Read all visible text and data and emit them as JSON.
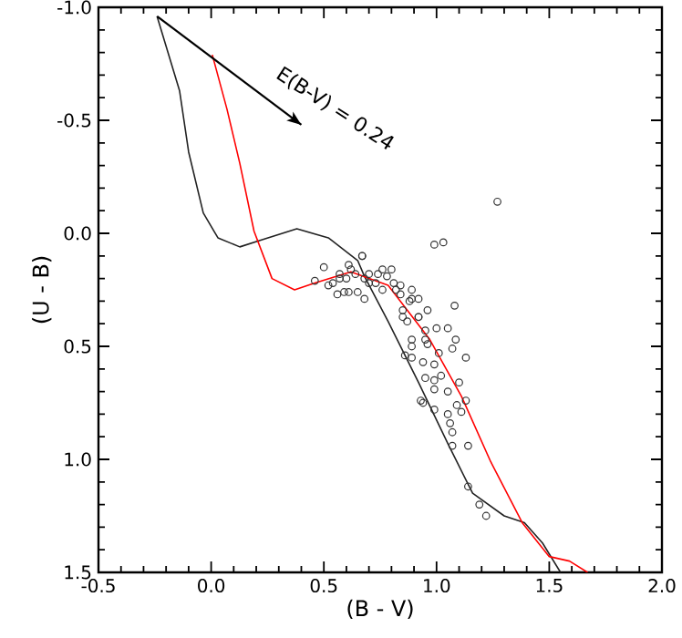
{
  "chart_data": {
    "type": "scatter",
    "xlabel": "(B - V)",
    "ylabel": "(U - B)",
    "xlim": [
      -0.5,
      2.0
    ],
    "ylim": [
      1.5,
      -1.0
    ],
    "xticks": [
      -0.5,
      {
        "value": 0,
        "label": "0.0"
      },
      0.5,
      {
        "value": 1,
        "label": "1.0"
      },
      1.5,
      {
        "value": 2,
        "label": "2.0"
      }
    ],
    "yticks": [
      {
        "value": -1,
        "label": "-1.0"
      },
      -0.5,
      {
        "value": 0,
        "label": "0.0"
      },
      0.5,
      {
        "value": 1,
        "label": "1.0"
      },
      1.5
    ],
    "annotations": [
      "E(B-V) = 0.24"
    ],
    "series": [
      {
        "type": "line",
        "color": "#222222",
        "x": [
          -0.24,
          -0.14,
          -0.1,
          -0.035,
          0.03,
          0.127,
          0.22,
          0.38,
          0.52,
          0.65,
          0.68,
          0.785,
          0.92,
          1.05,
          1.16,
          1.3,
          1.39,
          1.47,
          1.55
        ],
        "values": [
          -0.96,
          -0.63,
          -0.36,
          -0.09,
          0.02,
          0.06,
          0.03,
          -0.02,
          0.02,
          0.12,
          0.19,
          0.39,
          0.66,
          0.93,
          1.15,
          1.25,
          1.28,
          1.37,
          1.5
        ]
      },
      {
        "type": "line",
        "color": "#ff0000",
        "x": [
          0.005,
          0.07,
          0.127,
          0.19,
          0.27,
          0.37,
          0.46,
          0.62,
          0.785,
          0.97,
          1.11,
          1.24,
          1.38,
          1.5,
          1.59,
          1.67
        ],
        "values": [
          -0.79,
          -0.55,
          -0.31,
          -0.01,
          0.2,
          0.25,
          0.22,
          0.17,
          0.23,
          0.47,
          0.72,
          1.01,
          1.28,
          1.43,
          1.45,
          1.5
        ]
      },
      {
        "type": "line",
        "color": "#000000",
        "x": [
          -0.24,
          0.4
        ],
        "values": [
          -0.96,
          -0.48
        ]
      },
      {
        "marker": "circle",
        "color": "#333333",
        "x": [
          1.27,
          0.99,
          1.03,
          0.67,
          1.08,
          1.05,
          1.085,
          1.07,
          1.13,
          1.01,
          0.99,
          0.95,
          0.99,
          1.02,
          1.1,
          1.05,
          0.99,
          1.13,
          1.09,
          1.11,
          1.05,
          0.99,
          0.94,
          1.06,
          1.07,
          1.07,
          1.14,
          1.14,
          1.19,
          1.22,
          0.86,
          0.94,
          0.96,
          0.89,
          0.95,
          1.0,
          0.92,
          0.96,
          0.87,
          0.85,
          0.92,
          0.88,
          0.84,
          0.81,
          0.78,
          0.76,
          0.8,
          0.73,
          0.7,
          0.68,
          0.64,
          0.61,
          0.6,
          0.57,
          0.54,
          0.65,
          0.59,
          0.76,
          0.82,
          0.89,
          0.46,
          0.5,
          0.52,
          0.57,
          0.56,
          0.61,
          0.68,
          0.67,
          0.74,
          0.7,
          0.62,
          0.84,
          0.89,
          0.85,
          0.92,
          0.89,
          0.95,
          0.93,
          0.89
        ],
        "values": [
          -0.14,
          0.05,
          0.04,
          0.1,
          0.32,
          0.42,
          0.47,
          0.51,
          0.55,
          0.53,
          0.58,
          0.64,
          0.65,
          0.63,
          0.66,
          0.7,
          0.69,
          0.74,
          0.76,
          0.79,
          0.8,
          0.78,
          0.75,
          0.84,
          0.88,
          0.94,
          0.94,
          1.12,
          1.2,
          1.25,
          0.54,
          0.57,
          0.49,
          0.5,
          0.43,
          0.42,
          0.37,
          0.34,
          0.39,
          0.34,
          0.29,
          0.3,
          0.27,
          0.22,
          0.19,
          0.16,
          0.16,
          0.22,
          0.18,
          0.2,
          0.18,
          0.14,
          0.2,
          0.18,
          0.22,
          0.26,
          0.26,
          0.25,
          0.25,
          0.25,
          0.21,
          0.15,
          0.23,
          0.2,
          0.27,
          0.26,
          0.29,
          0.1,
          0.18,
          0.22,
          0.16,
          0.23,
          0.29,
          0.37,
          0.37,
          0.47,
          0.47,
          0.74,
          0.55
        ]
      }
    ]
  }
}
